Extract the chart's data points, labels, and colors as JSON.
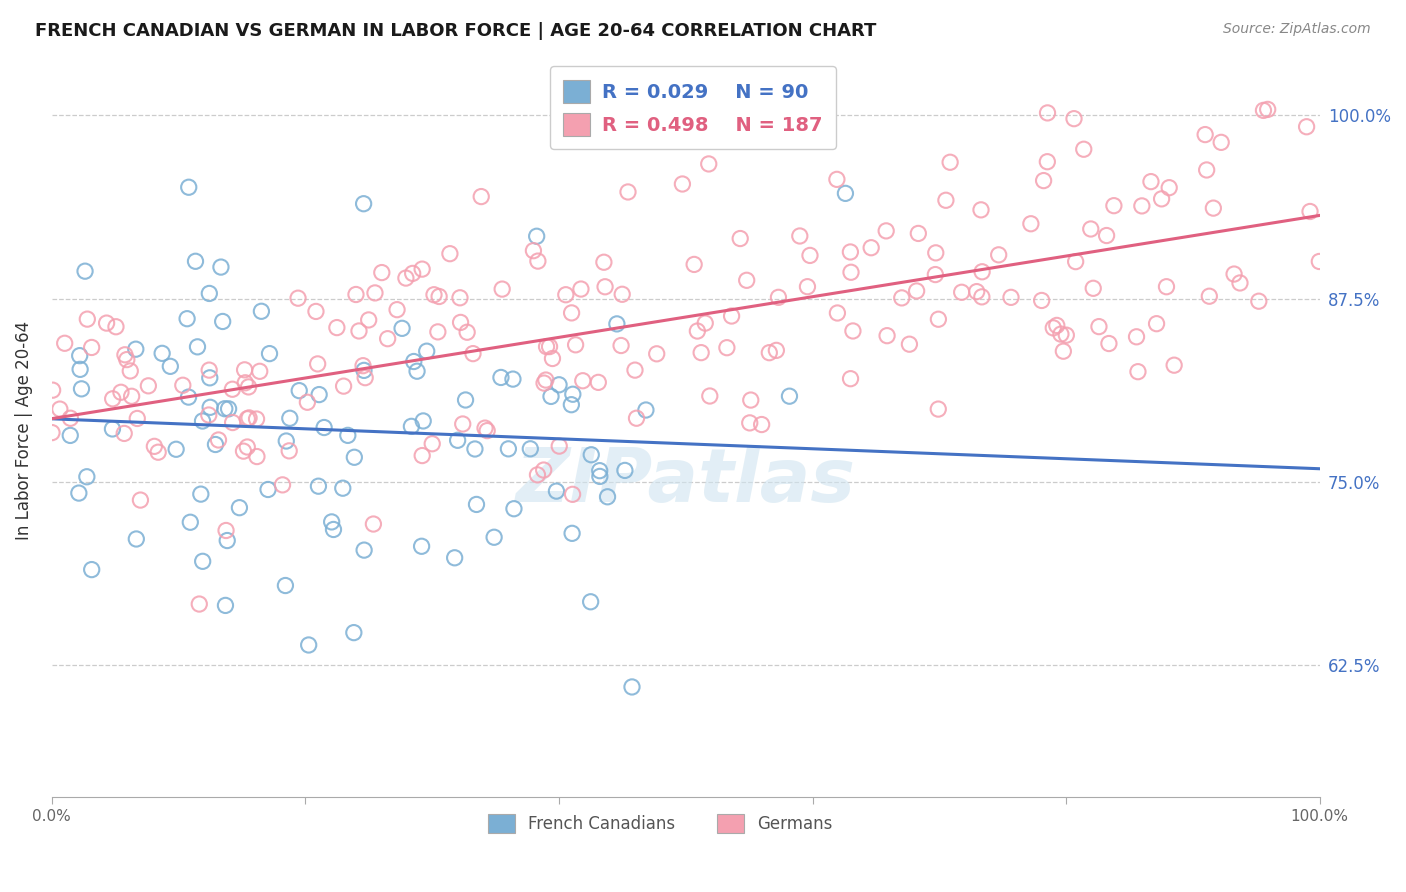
{
  "title": "FRENCH CANADIAN VS GERMAN IN LABOR FORCE | AGE 20-64 CORRELATION CHART",
  "source": "Source: ZipAtlas.com",
  "ylabel": "In Labor Force | Age 20-64",
  "y_tick_labels": [
    "62.5%",
    "75.0%",
    "87.5%",
    "100.0%"
  ],
  "y_tick_values": [
    0.625,
    0.75,
    0.875,
    1.0
  ],
  "x_range": [
    0.0,
    1.0
  ],
  "y_range": [
    0.535,
    1.035
  ],
  "legend_labels": [
    "French Canadians",
    "Germans"
  ],
  "legend_R_french": "R = 0.029",
  "legend_N_french": "N = 90",
  "legend_R_german": "R = 0.498",
  "legend_N_german": "N = 187",
  "french_color": "#7bafd4",
  "german_color": "#f4a0b0",
  "french_line_color": "#4472c4",
  "german_line_color": "#e06080",
  "watermark": "ZIPatlas",
  "french_R": 0.029,
  "french_N": 90,
  "german_R": 0.498,
  "german_N": 187,
  "background_color": "#ffffff",
  "grid_color": "#cccccc",
  "french_intercept": 0.793,
  "french_slope": 0.008,
  "german_intercept": 0.795,
  "german_slope": 0.135
}
